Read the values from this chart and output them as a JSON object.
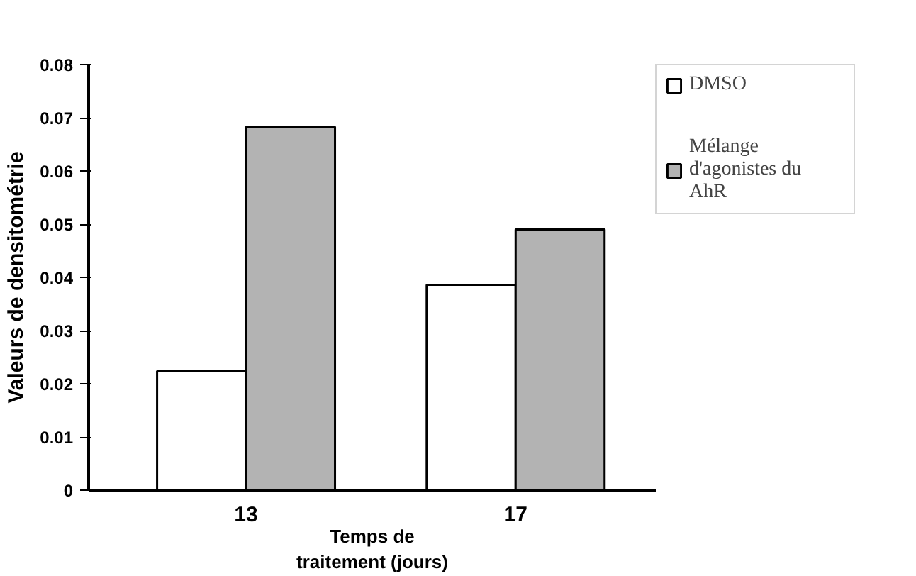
{
  "chart_data": {
    "type": "bar",
    "xlabel": "Temps de\ntraitement (jours)",
    "ylabel": "Valeurs de densitométrie",
    "categories": [
      "13",
      "17"
    ],
    "series": [
      {
        "name": "DMSO",
        "color": "#ffffff",
        "values": [
          0.0224,
          0.0386
        ]
      },
      {
        "name": "Mélange d'agonistes du AhR",
        "color": "#b3b3b3",
        "values": [
          0.0683,
          0.049
        ]
      }
    ],
    "ylim": [
      0,
      0.08
    ],
    "yticks": [
      0,
      0.01,
      0.02,
      0.03,
      0.04,
      0.05,
      0.06,
      0.07,
      0.08
    ],
    "legend": "top right"
  }
}
